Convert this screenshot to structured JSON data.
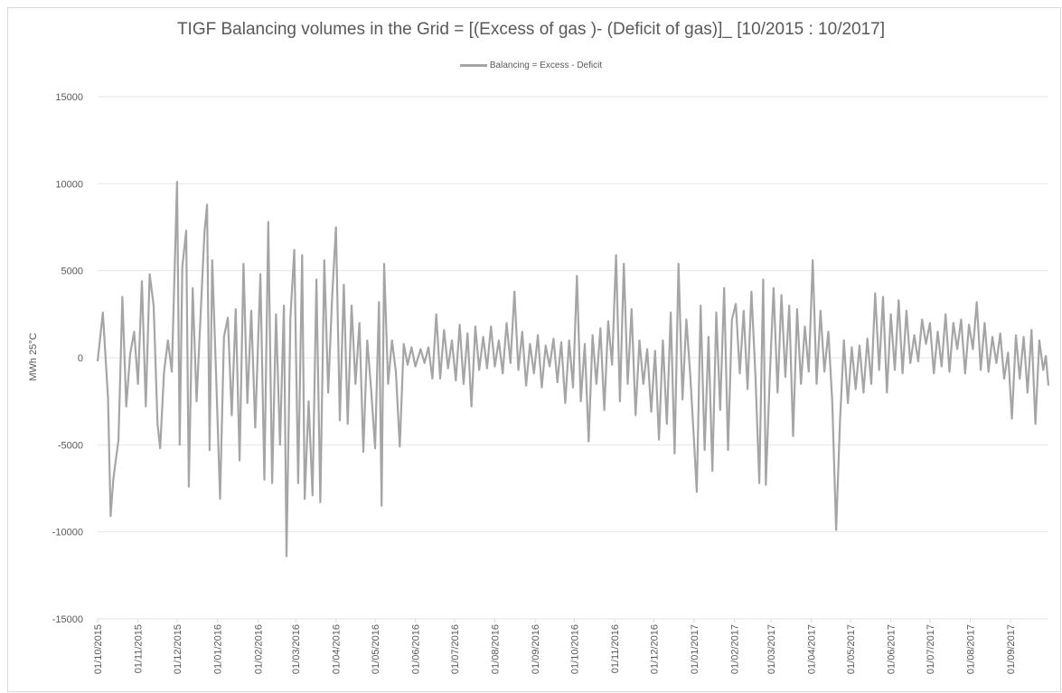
{
  "chart_data": {
    "type": "line",
    "title": "TIGF Balancing volumes in the Grid = [(Excess  of gas )- (Deficit of gas)]_ [10/2015 : 10/2017]",
    "xlabel": "",
    "ylabel": "MWh 25°C",
    "ylim": [
      -15000,
      15000
    ],
    "yticks": [
      -15000,
      -10000,
      -5000,
      0,
      5000,
      10000,
      15000
    ],
    "grid": true,
    "legend_position": "top",
    "x_start": "01/10/2015",
    "x_end": "30/09/2017",
    "x_tick_labels": [
      "01/10/2015",
      "01/11/2015",
      "01/12/2015",
      "01/01/2016",
      "01/02/2016",
      "01/03/2016",
      "01/04/2016",
      "01/05/2016",
      "01/06/2016",
      "01/07/2016",
      "01/08/2016",
      "01/09/2016",
      "01/10/2016",
      "01/11/2016",
      "01/12/2016",
      "01/01/2017",
      "01/02/2017",
      "01/03/2017",
      "01/04/2017",
      "01/05/2017",
      "01/06/2017",
      "01/07/2017",
      "01/08/2017",
      "01/09/2017"
    ],
    "series": [
      {
        "name": "Balancing = Excess - Deficit",
        "color": "#a5a5a5",
        "points": [
          [
            "01/10/2015",
            -200
          ],
          [
            "05/10/2015",
            2600
          ],
          [
            "09/10/2015",
            -2300
          ],
          [
            "11/10/2015",
            -9100
          ],
          [
            "13/10/2015",
            -7000
          ],
          [
            "17/10/2015",
            -4700
          ],
          [
            "20/10/2015",
            3500
          ],
          [
            "23/10/2015",
            -2800
          ],
          [
            "26/10/2015",
            200
          ],
          [
            "29/10/2015",
            1500
          ],
          [
            "01/11/2015",
            -1500
          ],
          [
            "04/11/2015",
            4400
          ],
          [
            "07/11/2015",
            -2800
          ],
          [
            "10/11/2015",
            4800
          ],
          [
            "13/11/2015",
            3000
          ],
          [
            "16/11/2015",
            -3800
          ],
          [
            "18/11/2015",
            -5200
          ],
          [
            "21/11/2015",
            -800
          ],
          [
            "24/11/2015",
            1000
          ],
          [
            "27/11/2015",
            -800
          ],
          [
            "01/12/2015",
            10100
          ],
          [
            "03/12/2015",
            -5000
          ],
          [
            "05/12/2015",
            5200
          ],
          [
            "08/12/2015",
            7300
          ],
          [
            "10/12/2015",
            -7400
          ],
          [
            "13/12/2015",
            4000
          ],
          [
            "16/12/2015",
            -2500
          ],
          [
            "19/12/2015",
            2300
          ],
          [
            "22/12/2015",
            7200
          ],
          [
            "24/12/2015",
            8800
          ],
          [
            "26/12/2015",
            -5300
          ],
          [
            "28/12/2015",
            5600
          ],
          [
            "31/12/2015",
            -1000
          ],
          [
            "03/01/2016",
            -8100
          ],
          [
            "06/01/2016",
            1200
          ],
          [
            "09/01/2016",
            2300
          ],
          [
            "12/01/2016",
            -3300
          ],
          [
            "15/01/2016",
            2800
          ],
          [
            "18/01/2016",
            -5900
          ],
          [
            "21/01/2016",
            5400
          ],
          [
            "24/01/2016",
            -2600
          ],
          [
            "27/01/2016",
            2700
          ],
          [
            "30/01/2016",
            -4000
          ],
          [
            "03/02/2016",
            4800
          ],
          [
            "06/02/2016",
            -7000
          ],
          [
            "09/02/2016",
            7800
          ],
          [
            "12/02/2016",
            -7200
          ],
          [
            "15/02/2016",
            2500
          ],
          [
            "18/02/2016",
            -5000
          ],
          [
            "21/02/2016",
            3000
          ],
          [
            "23/02/2016",
            -11400
          ],
          [
            "26/02/2016",
            2300
          ],
          [
            "29/02/2016",
            6200
          ],
          [
            "03/03/2016",
            -7200
          ],
          [
            "06/03/2016",
            5900
          ],
          [
            "08/03/2016",
            -8100
          ],
          [
            "11/03/2016",
            -2500
          ],
          [
            "14/03/2016",
            -7900
          ],
          [
            "17/03/2016",
            4500
          ],
          [
            "20/03/2016",
            -8300
          ],
          [
            "23/03/2016",
            5600
          ],
          [
            "26/03/2016",
            -2000
          ],
          [
            "29/03/2016",
            3400
          ],
          [
            "01/04/2016",
            7500
          ],
          [
            "04/04/2016",
            -3600
          ],
          [
            "07/04/2016",
            4200
          ],
          [
            "10/04/2016",
            -3800
          ],
          [
            "13/04/2016",
            3000
          ],
          [
            "16/04/2016",
            -1500
          ],
          [
            "19/04/2016",
            2000
          ],
          [
            "22/04/2016",
            -5400
          ],
          [
            "25/04/2016",
            1000
          ],
          [
            "28/04/2016",
            -1800
          ],
          [
            "01/05/2016",
            -5200
          ],
          [
            "04/05/2016",
            3200
          ],
          [
            "06/05/2016",
            -8500
          ],
          [
            "08/05/2016",
            5400
          ],
          [
            "11/05/2016",
            -1500
          ],
          [
            "14/05/2016",
            1000
          ],
          [
            "17/05/2016",
            -800
          ],
          [
            "20/05/2016",
            -5100
          ],
          [
            "23/05/2016",
            800
          ],
          [
            "26/05/2016",
            -400
          ],
          [
            "29/05/2016",
            600
          ],
          [
            "01/06/2016",
            -500
          ],
          [
            "05/06/2016",
            500
          ],
          [
            "08/06/2016",
            -300
          ],
          [
            "11/06/2016",
            600
          ],
          [
            "14/06/2016",
            -1200
          ],
          [
            "17/06/2016",
            2500
          ],
          [
            "20/06/2016",
            -1200
          ],
          [
            "23/06/2016",
            1600
          ],
          [
            "26/06/2016",
            -600
          ],
          [
            "29/06/2016",
            1000
          ],
          [
            "02/07/2016",
            -1300
          ],
          [
            "05/07/2016",
            1900
          ],
          [
            "08/07/2016",
            -1500
          ],
          [
            "11/07/2016",
            1400
          ],
          [
            "14/07/2016",
            -2800
          ],
          [
            "17/07/2016",
            1800
          ],
          [
            "20/07/2016",
            -700
          ],
          [
            "23/07/2016",
            1200
          ],
          [
            "26/07/2016",
            -600
          ],
          [
            "29/07/2016",
            1800
          ],
          [
            "01/08/2016",
            -500
          ],
          [
            "04/08/2016",
            1000
          ],
          [
            "07/08/2016",
            -900
          ],
          [
            "10/08/2016",
            2000
          ],
          [
            "13/08/2016",
            -300
          ],
          [
            "16/08/2016",
            3800
          ],
          [
            "19/08/2016",
            -700
          ],
          [
            "22/08/2016",
            1500
          ],
          [
            "25/08/2016",
            -1600
          ],
          [
            "28/08/2016",
            800
          ],
          [
            "31/08/2016",
            -900
          ],
          [
            "03/09/2016",
            1300
          ],
          [
            "06/09/2016",
            -1700
          ],
          [
            "09/09/2016",
            700
          ],
          [
            "12/09/2016",
            -500
          ],
          [
            "15/09/2016",
            1100
          ],
          [
            "18/09/2016",
            -1400
          ],
          [
            "21/09/2016",
            900
          ],
          [
            "24/09/2016",
            -2600
          ],
          [
            "27/09/2016",
            1000
          ],
          [
            "30/09/2016",
            -1700
          ],
          [
            "03/10/2016",
            4700
          ],
          [
            "06/10/2016",
            -2500
          ],
          [
            "09/10/2016",
            800
          ],
          [
            "12/10/2016",
            -4800
          ],
          [
            "15/10/2016",
            1300
          ],
          [
            "18/10/2016",
            -1500
          ],
          [
            "21/10/2016",
            1700
          ],
          [
            "24/10/2016",
            -3000
          ],
          [
            "27/10/2016",
            2100
          ],
          [
            "30/10/2016",
            -400
          ],
          [
            "02/11/2016",
            5900
          ],
          [
            "05/11/2016",
            -2500
          ],
          [
            "08/11/2016",
            5400
          ],
          [
            "11/11/2016",
            -1500
          ],
          [
            "14/11/2016",
            2800
          ],
          [
            "17/11/2016",
            -3300
          ],
          [
            "20/11/2016",
            1000
          ],
          [
            "23/11/2016",
            -1500
          ],
          [
            "26/11/2016",
            500
          ],
          [
            "29/11/2016",
            -3100
          ],
          [
            "02/12/2016",
            400
          ],
          [
            "05/12/2016",
            -4700
          ],
          [
            "08/12/2016",
            1000
          ],
          [
            "11/12/2016",
            -3800
          ],
          [
            "14/12/2016",
            2600
          ],
          [
            "17/12/2016",
            -5500
          ],
          [
            "20/12/2016",
            5400
          ],
          [
            "23/12/2016",
            -2400
          ],
          [
            "26/12/2016",
            2200
          ],
          [
            "29/12/2016",
            -1000
          ],
          [
            "01/01/2017",
            -4900
          ],
          [
            "03/01/2017",
            -7700
          ],
          [
            "06/01/2017",
            3000
          ],
          [
            "09/01/2017",
            -5300
          ],
          [
            "12/01/2017",
            1200
          ],
          [
            "15/01/2017",
            -6500
          ],
          [
            "18/01/2017",
            2600
          ],
          [
            "21/01/2017",
            -3000
          ],
          [
            "24/01/2017",
            4000
          ],
          [
            "27/01/2017",
            -5300
          ],
          [
            "30/01/2017",
            2200
          ],
          [
            "02/02/2017",
            3100
          ],
          [
            "05/02/2017",
            -900
          ],
          [
            "08/02/2017",
            2700
          ],
          [
            "11/02/2017",
            -1800
          ],
          [
            "14/02/2017",
            3800
          ],
          [
            "17/02/2017",
            -1000
          ],
          [
            "20/02/2017",
            -7200
          ],
          [
            "23/02/2017",
            4500
          ],
          [
            "25/02/2017",
            -7300
          ],
          [
            "28/02/2017",
            -1200
          ],
          [
            "03/03/2017",
            4000
          ],
          [
            "06/03/2017",
            -2000
          ],
          [
            "09/03/2017",
            3600
          ],
          [
            "12/03/2017",
            -1100
          ],
          [
            "15/03/2017",
            3000
          ],
          [
            "18/03/2017",
            -4500
          ],
          [
            "21/03/2017",
            2800
          ],
          [
            "24/03/2017",
            -1500
          ],
          [
            "27/03/2017",
            1800
          ],
          [
            "30/03/2017",
            -800
          ],
          [
            "02/04/2017",
            5600
          ],
          [
            "05/04/2017",
            -1500
          ],
          [
            "08/04/2017",
            2700
          ],
          [
            "11/04/2017",
            -800
          ],
          [
            "14/04/2017",
            1500
          ],
          [
            "17/04/2017",
            -2500
          ],
          [
            "20/04/2017",
            -9900
          ],
          [
            "23/04/2017",
            -3600
          ],
          [
            "26/04/2017",
            1000
          ],
          [
            "29/04/2017",
            -2600
          ],
          [
            "02/05/2017",
            600
          ],
          [
            "05/05/2017",
            -1800
          ],
          [
            "08/05/2017",
            700
          ],
          [
            "11/05/2017",
            -2000
          ],
          [
            "14/05/2017",
            1100
          ],
          [
            "17/05/2017",
            -1500
          ],
          [
            "20/05/2017",
            3700
          ],
          [
            "23/05/2017",
            -700
          ],
          [
            "26/05/2017",
            3500
          ],
          [
            "29/05/2017",
            -2000
          ],
          [
            "01/06/2017",
            2500
          ],
          [
            "04/06/2017",
            -700
          ],
          [
            "07/06/2017",
            3300
          ],
          [
            "10/06/2017",
            -900
          ],
          [
            "13/06/2017",
            2700
          ],
          [
            "16/06/2017",
            -300
          ],
          [
            "19/06/2017",
            1300
          ],
          [
            "22/06/2017",
            -200
          ],
          [
            "25/06/2017",
            2200
          ],
          [
            "28/06/2017",
            800
          ],
          [
            "01/07/2017",
            2000
          ],
          [
            "04/07/2017",
            -900
          ],
          [
            "07/07/2017",
            1500
          ],
          [
            "10/07/2017",
            -500
          ],
          [
            "13/07/2017",
            2500
          ],
          [
            "16/07/2017",
            -800
          ],
          [
            "19/07/2017",
            2000
          ],
          [
            "22/07/2017",
            500
          ],
          [
            "25/07/2017",
            2200
          ],
          [
            "28/07/2017",
            -900
          ],
          [
            "31/07/2017",
            1900
          ],
          [
            "03/08/2017",
            500
          ],
          [
            "06/08/2017",
            3200
          ],
          [
            "09/08/2017",
            -700
          ],
          [
            "12/08/2017",
            2000
          ],
          [
            "15/08/2017",
            -800
          ],
          [
            "18/08/2017",
            1200
          ],
          [
            "21/08/2017",
            -300
          ],
          [
            "24/08/2017",
            1400
          ],
          [
            "27/08/2017",
            -1200
          ],
          [
            "30/08/2017",
            300
          ],
          [
            "02/09/2017",
            -3500
          ],
          [
            "05/09/2017",
            1300
          ],
          [
            "08/09/2017",
            -1200
          ],
          [
            "11/09/2017",
            1200
          ],
          [
            "14/09/2017",
            -2000
          ],
          [
            "17/09/2017",
            1600
          ],
          [
            "20/09/2017",
            -3800
          ],
          [
            "23/09/2017",
            1000
          ],
          [
            "26/09/2017",
            -700
          ],
          [
            "28/09/2017",
            100
          ],
          [
            "30/09/2017",
            -1600
          ]
        ]
      }
    ]
  }
}
